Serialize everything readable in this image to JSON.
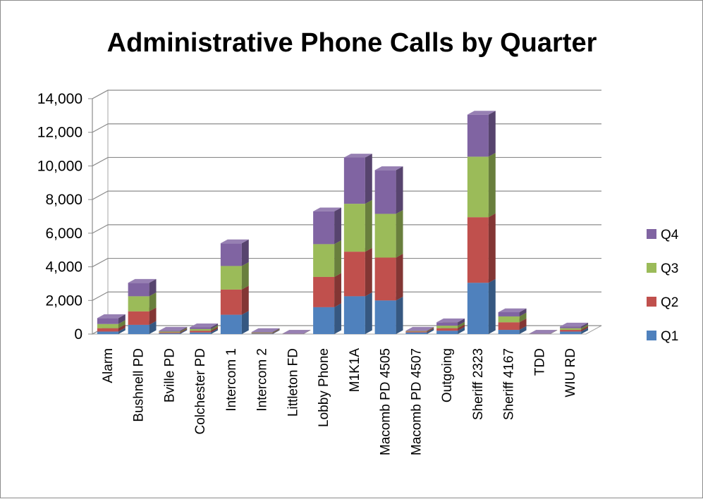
{
  "chart_data": {
    "type": "bar",
    "stacked": true,
    "three_d": true,
    "title": "Administrative Phone Calls by Quarter",
    "xlabel": "",
    "ylabel": "",
    "ylim": [
      0,
      14000
    ],
    "y_ticks": [
      "0",
      "2,000",
      "4,000",
      "6,000",
      "8,000",
      "10,000",
      "12,000",
      "14,000"
    ],
    "grid": true,
    "legend_position": "right",
    "categories": [
      "Alarm",
      "Bushnell PD",
      "Bville PD",
      "Colchester PD",
      "Intercom 1",
      "Intercom 2",
      "Littleton FD",
      "Lobby Phone",
      "M1K1A",
      "Macomb PD 4505",
      "Macomb PD 4507",
      "Outgoing",
      "Sheriff 2323",
      "Sheriff 4167",
      "TDD",
      "WIU RD"
    ],
    "series": [
      {
        "name": "Q1",
        "color": "#4F81BD",
        "values": [
          150,
          550,
          50,
          100,
          1150,
          30,
          5,
          1600,
          2250,
          2000,
          100,
          200,
          3050,
          250,
          5,
          150
        ]
      },
      {
        "name": "Q2",
        "color": "#C0504D",
        "values": [
          200,
          800,
          50,
          100,
          1500,
          30,
          5,
          1800,
          2650,
          2550,
          50,
          150,
          3900,
          450,
          5,
          100
        ]
      },
      {
        "name": "Q3",
        "color": "#9BBB59",
        "values": [
          250,
          900,
          50,
          100,
          1400,
          30,
          5,
          1950,
          2850,
          2600,
          30,
          150,
          3600,
          350,
          5,
          100
        ]
      },
      {
        "name": "Q4",
        "color": "#8064A2",
        "values": [
          350,
          800,
          50,
          100,
          1350,
          30,
          5,
          1950,
          2750,
          2600,
          20,
          200,
          2500,
          250,
          5,
          100
        ]
      }
    ]
  }
}
